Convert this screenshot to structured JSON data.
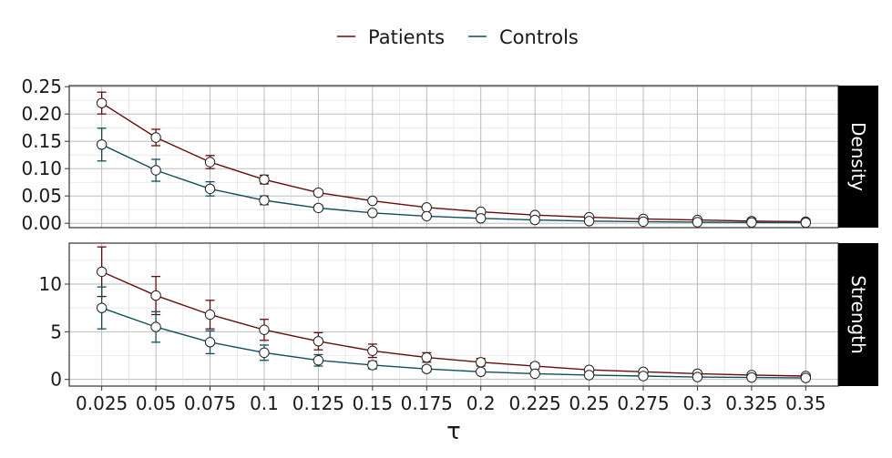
{
  "chart_data": {
    "type": "line",
    "legend_position": "top",
    "xlabel": "τ",
    "x": [
      0.025,
      0.05,
      0.075,
      0.1,
      0.125,
      0.15,
      0.175,
      0.2,
      0.225,
      0.25,
      0.275,
      0.3,
      0.325,
      0.35
    ],
    "x_tick_labels": [
      "0.025",
      "0.05",
      "0.075",
      "0.1",
      "0.125",
      "0.15",
      "0.175",
      "0.2",
      "0.225",
      "0.25",
      "0.275",
      "0.3",
      "0.325",
      "0.35"
    ],
    "series_colors": {
      "Patients": "#6b0a0a",
      "Controls": "#0f4f5c"
    },
    "legend": [
      "Patients",
      "Controls"
    ],
    "panels": [
      {
        "strip": "Density",
        "ylim": [
          -0.008,
          0.252
        ],
        "y_ticks": [
          0.0,
          0.05,
          0.1,
          0.15,
          0.2,
          0.25
        ],
        "y_tick_labels": [
          "0.00",
          "0.05",
          "0.10",
          "0.15",
          "0.20",
          "0.25"
        ],
        "series": [
          {
            "name": "Patients",
            "values": [
              0.22,
              0.157,
              0.112,
              0.08,
              0.056,
              0.041,
              0.029,
              0.021,
              0.015,
              0.011,
              0.008,
              0.006,
              0.004,
              0.003
            ],
            "err": [
              0.02,
              0.015,
              0.012,
              0.008,
              0.005,
              0.004,
              0.003,
              0.002,
              0.002,
              0.001,
              0.001,
              0.001,
              0.001,
              0.001
            ]
          },
          {
            "name": "Controls",
            "values": [
              0.144,
              0.097,
              0.063,
              0.042,
              0.028,
              0.019,
              0.013,
              0.009,
              0.006,
              0.004,
              0.003,
              0.002,
              0.0015,
              0.001
            ],
            "err": [
              0.03,
              0.02,
              0.013,
              0.008,
              0.005,
              0.003,
              0.002,
              0.001,
              0.001,
              0.001,
              0.001,
              0.0005,
              0.0005,
              0.0005
            ]
          }
        ]
      },
      {
        "strip": "Strength",
        "ylim": [
          -0.7,
          14.3
        ],
        "y_ticks": [
          0,
          5,
          10
        ],
        "y_tick_labels": [
          "0",
          "5",
          "10"
        ],
        "series": [
          {
            "name": "Patients",
            "values": [
              11.3,
              8.8,
              6.8,
              5.2,
              4.0,
              3.0,
              2.3,
              1.8,
              1.4,
              1.0,
              0.8,
              0.6,
              0.45,
              0.35
            ],
            "err": [
              2.6,
              2.0,
              1.5,
              1.1,
              0.9,
              0.7,
              0.5,
              0.4,
              0.3,
              0.2,
              0.15,
              0.1,
              0.1,
              0.1
            ]
          },
          {
            "name": "Controls",
            "values": [
              7.5,
              5.5,
              3.9,
              2.8,
              2.0,
              1.5,
              1.1,
              0.8,
              0.6,
              0.45,
              0.35,
              0.25,
              0.2,
              0.15
            ],
            "err": [
              2.2,
              1.6,
              1.2,
              0.8,
              0.6,
              0.4,
              0.3,
              0.2,
              0.15,
              0.1,
              0.1,
              0.05,
              0.05,
              0.05
            ]
          }
        ]
      }
    ]
  }
}
